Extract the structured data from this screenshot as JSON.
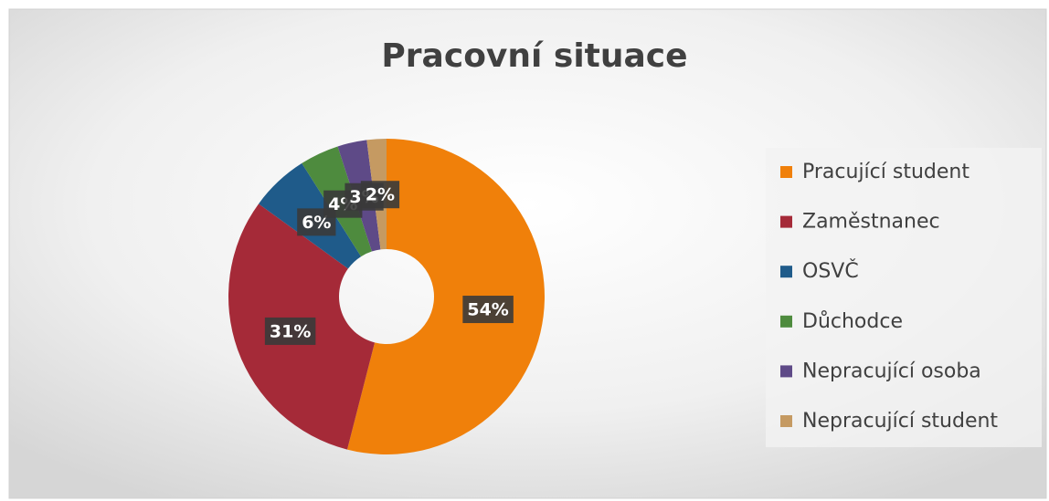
{
  "chart_data": {
    "type": "donut",
    "title": "Pracovní situace",
    "categories": [
      "Pracující student",
      "Zaměstnanec",
      "OSVČ",
      "Důchodce",
      "Nepracující osoba",
      "Nepracující student"
    ],
    "values": [
      54,
      31,
      6,
      4,
      3,
      2
    ],
    "value_labels": [
      "54%",
      "31%",
      "6%",
      "4%",
      "3%",
      "2%"
    ],
    "colors": [
      "#f0800a",
      "#a52a38",
      "#1f5b8a",
      "#4e8b3e",
      "#5e4a87",
      "#c59a62"
    ],
    "legend": "right"
  }
}
